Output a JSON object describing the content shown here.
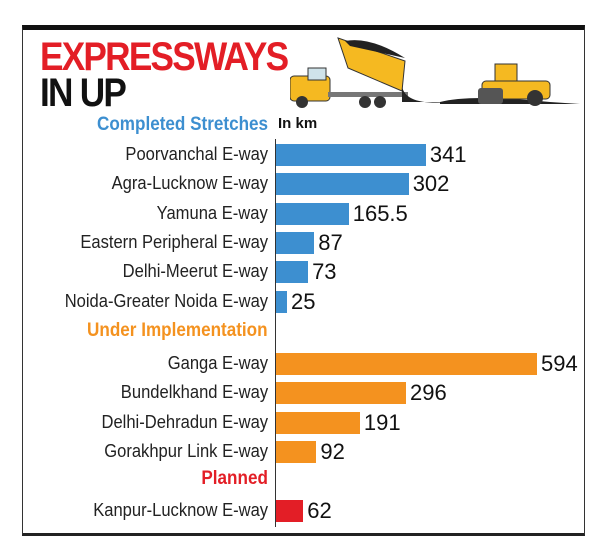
{
  "title_line1": "EXPRESSWAYS",
  "title_line2": "IN UP",
  "unit": "In km",
  "colors": {
    "completed": "#3d8fd0",
    "under": "#f4921f",
    "planned": "#e31e26",
    "title_red": "#e31e26"
  },
  "illustration": [
    "dump-truck-icon",
    "road-roller-icon"
  ],
  "chart_data": {
    "type": "bar",
    "orientation": "horizontal",
    "groups": [
      {
        "name": "Completed Stretches",
        "color": "#3d8fd0",
        "categories": [
          "Poorvanchal E-way",
          "Agra-Lucknow E-way",
          "Yamuna E-way",
          "Eastern Peripheral E-way",
          "Delhi-Meerut E-way",
          "Noida-Greater Noida E-way"
        ],
        "values": [
          341,
          302,
          165.5,
          87,
          73,
          25
        ]
      },
      {
        "name": "Under Implementation",
        "color": "#f4921f",
        "categories": [
          "Ganga E-way",
          "Bundelkhand E-way",
          "Delhi-Dehradun E-way",
          "Gorakhpur Link E-way"
        ],
        "values": [
          594,
          296,
          191,
          92
        ]
      },
      {
        "name": "Planned",
        "color": "#e31e26",
        "categories": [
          "Kanpur-Lucknow E-way"
        ],
        "values": [
          62
        ]
      }
    ],
    "xlim": [
      0,
      594
    ],
    "grid": false
  }
}
